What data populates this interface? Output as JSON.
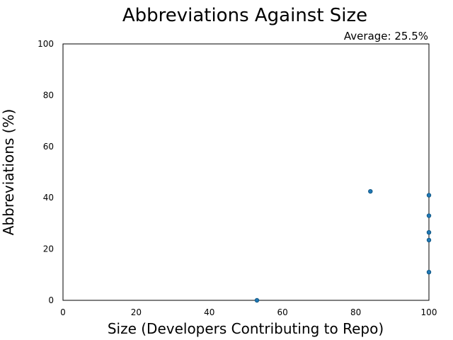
{
  "chart_data": {
    "type": "scatter",
    "title": "Abbreviations Against Size",
    "annotation": "Average: 25.5%",
    "xlabel": "Size (Developers Contributing to Repo)",
    "ylabel": "Abbreviations (%)",
    "xlim": [
      0,
      100
    ],
    "ylim": [
      0,
      100
    ],
    "xticks": [
      0,
      20,
      40,
      60,
      80,
      100
    ],
    "yticks": [
      0,
      20,
      40,
      60,
      80,
      100
    ],
    "grid": false,
    "marker_color": "#1f77b4",
    "points": [
      {
        "x": 53,
        "y": 0
      },
      {
        "x": 84,
        "y": 42.5
      },
      {
        "x": 100,
        "y": 41
      },
      {
        "x": 100,
        "y": 33
      },
      {
        "x": 100,
        "y": 26.5
      },
      {
        "x": 100,
        "y": 23.5
      },
      {
        "x": 100,
        "y": 11
      }
    ]
  }
}
